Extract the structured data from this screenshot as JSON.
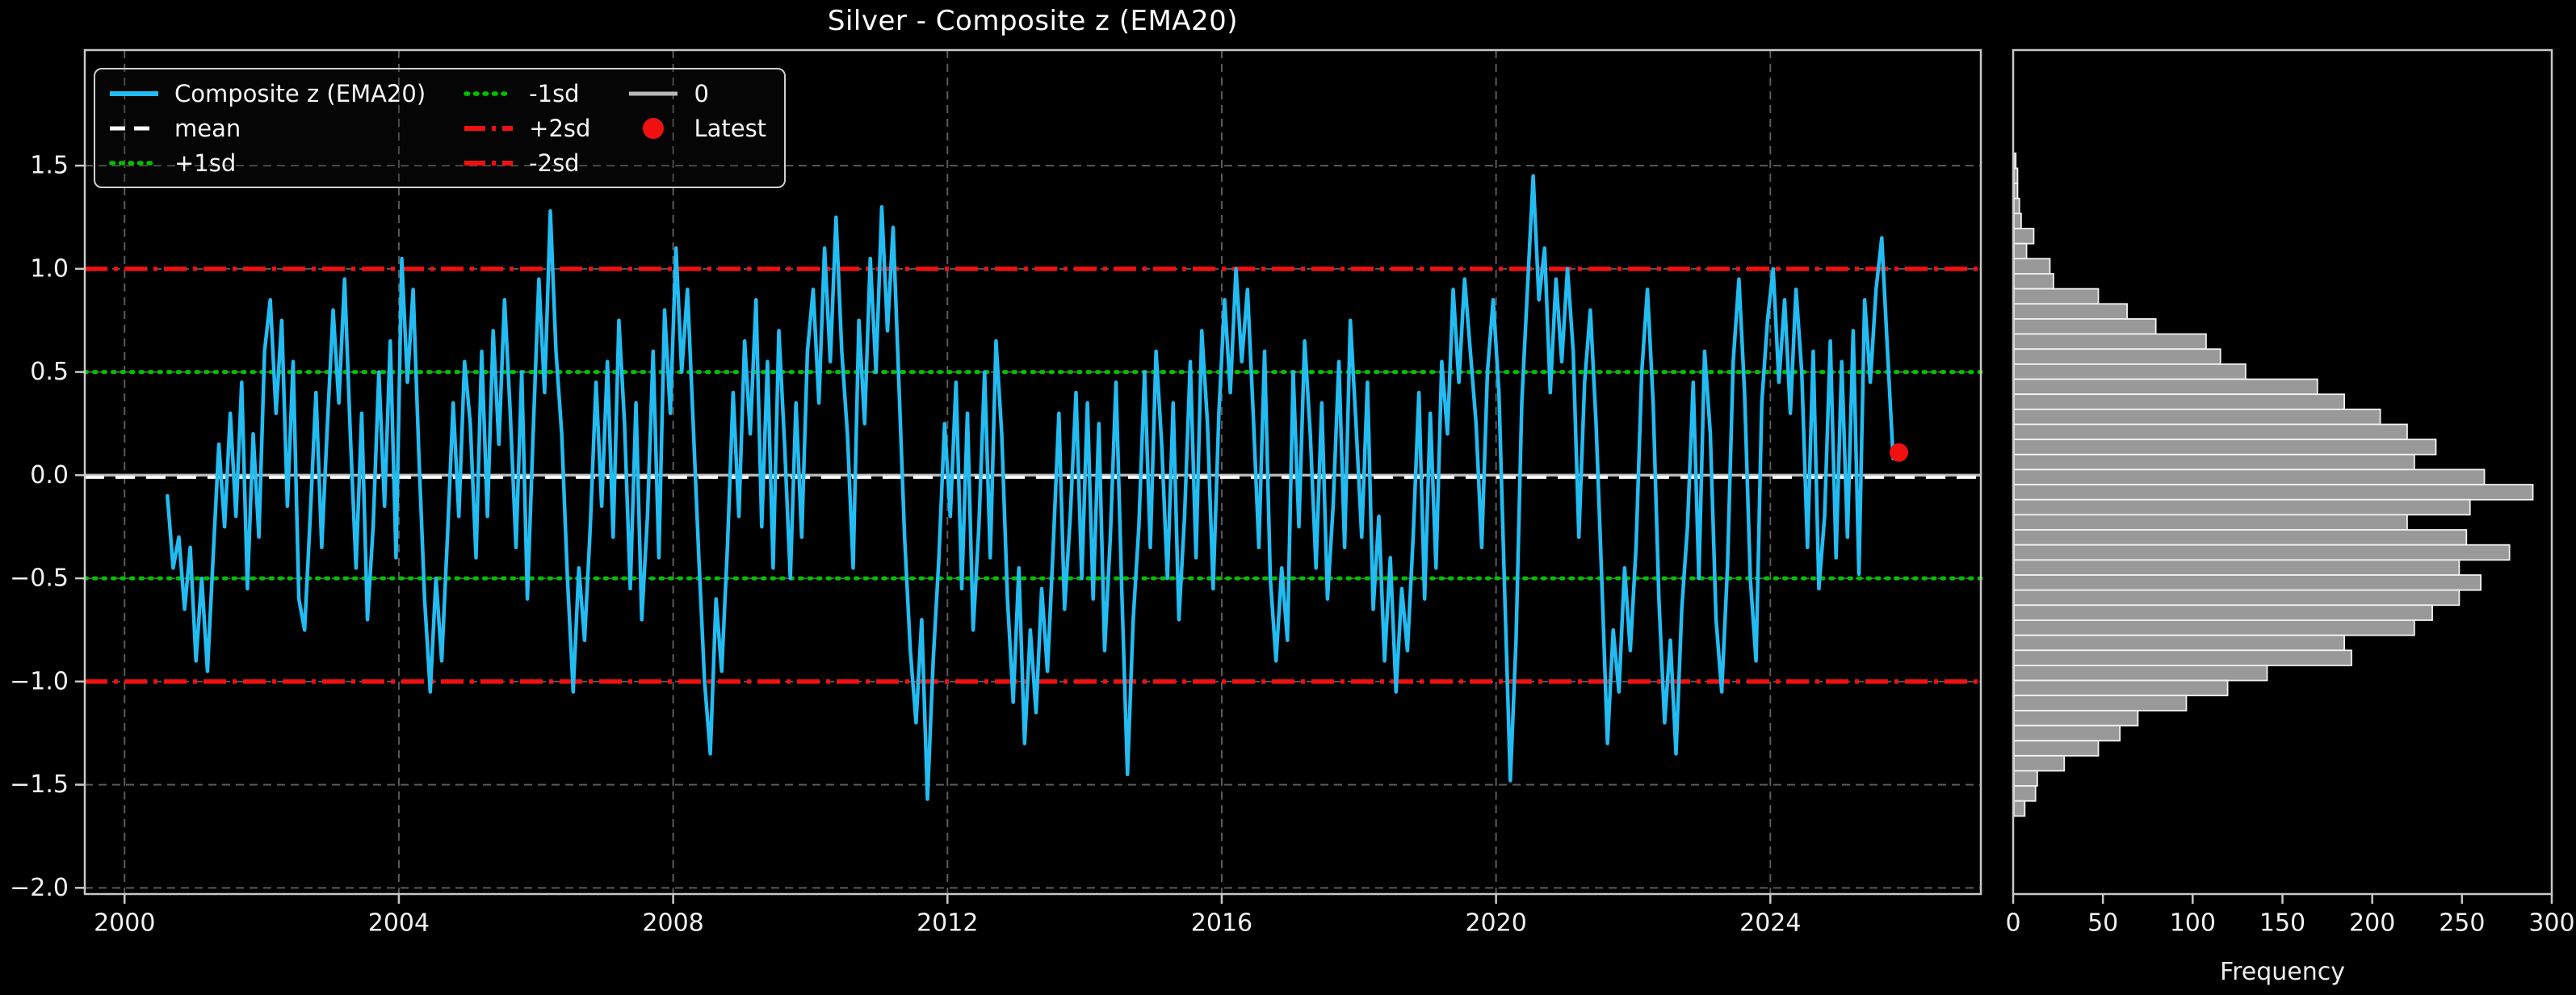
{
  "title": "Silver - Composite z (EMA20)",
  "legend": {
    "items": [
      {
        "label": "Composite z (EMA20)",
        "style": "solid-blue-line"
      },
      {
        "label": "mean",
        "style": "dashed-white-line"
      },
      {
        "label": "+1sd",
        "style": "dotted-green-line"
      },
      {
        "label": "-1sd",
        "style": "dotted-green-line"
      },
      {
        "label": "+2sd",
        "style": "dashdot-red-line"
      },
      {
        "label": "-2sd",
        "style": "dashdot-red-line"
      },
      {
        "label": "0",
        "style": "solid-gray-line"
      },
      {
        "label": "Latest",
        "style": "red-dot-marker"
      }
    ]
  },
  "colors": {
    "background": "#000000",
    "series": "#22bcf2",
    "mean_line": "#ffffff",
    "sd1_line": "#00c000",
    "sd2_line": "#f01010",
    "zero_line": "#b8b8b8",
    "latest_marker": "#f01010",
    "hist_bar_fill": "#999999",
    "hist_bar_edge": "#f2f2f2",
    "grid": "#5a5a5a",
    "spine": "#c8c8c8",
    "text": "#f2f2f2"
  },
  "chart_data": [
    {
      "type": "line",
      "name": "composite-z-timeseries",
      "title": "Silver - Composite z (EMA20)",
      "xlabel": "",
      "ylabel": "",
      "xlim": [
        1999.42,
        2027.07
      ],
      "ylim": [
        -2.03,
        2.06
      ],
      "xticks": [
        2000,
        2004,
        2008,
        2012,
        2016,
        2020,
        2024
      ],
      "yticks": [
        -2.0,
        -1.5,
        -1.0,
        -0.5,
        0.0,
        0.5,
        1.0,
        1.5
      ],
      "grid": true,
      "legend_position": "upper left",
      "ref_lines": {
        "mean": -0.01,
        "plus1sd": 0.5,
        "minus1sd": -0.5,
        "plus2sd": 1.0,
        "minus2sd": -1.0,
        "zero": 0.0
      },
      "latest": {
        "x": 2025.875,
        "y": 0.11
      },
      "x_start": 2000.625,
      "x_step": 0.083333,
      "values": [
        -0.1,
        -0.45,
        -0.3,
        -0.65,
        -0.35,
        -0.9,
        -0.5,
        -0.95,
        -0.4,
        0.15,
        -0.25,
        0.3,
        -0.2,
        0.45,
        -0.55,
        0.2,
        -0.3,
        0.6,
        0.85,
        0.3,
        0.75,
        -0.15,
        0.55,
        -0.6,
        -0.75,
        -0.2,
        0.4,
        -0.35,
        0.25,
        0.8,
        0.35,
        0.95,
        0.2,
        -0.45,
        0.3,
        -0.7,
        -0.25,
        0.5,
        -0.15,
        0.65,
        -0.4,
        1.05,
        0.45,
        0.9,
        0.1,
        -0.6,
        -1.05,
        -0.5,
        -0.9,
        -0.3,
        0.35,
        -0.2,
        0.55,
        0.25,
        -0.4,
        0.6,
        -0.2,
        0.7,
        0.15,
        0.85,
        0.3,
        -0.35,
        0.5,
        -0.6,
        0.2,
        0.95,
        0.4,
        1.28,
        0.6,
        0.2,
        -0.5,
        -1.05,
        -0.45,
        -0.8,
        -0.25,
        0.45,
        -0.15,
        0.55,
        -0.3,
        0.75,
        0.25,
        -0.55,
        0.35,
        -0.7,
        -0.2,
        0.6,
        -0.4,
        0.8,
        0.3,
        1.1,
        0.5,
        0.9,
        0.25,
        -0.4,
        -1.0,
        -1.35,
        -0.6,
        -0.95,
        -0.35,
        0.4,
        -0.2,
        0.65,
        0.2,
        0.85,
        -0.25,
        0.55,
        -0.45,
        0.7,
        0.15,
        -0.5,
        0.35,
        -0.3,
        0.6,
        0.9,
        0.35,
        1.1,
        0.55,
        1.25,
        0.6,
        0.2,
        -0.45,
        0.75,
        0.25,
        1.05,
        0.5,
        1.3,
        0.7,
        1.2,
        0.45,
        -0.3,
        -0.85,
        -1.2,
        -0.7,
        -1.57,
        -0.9,
        -0.4,
        0.25,
        -0.2,
        0.45,
        -0.55,
        0.3,
        -0.75,
        -0.25,
        0.5,
        -0.4,
        0.65,
        0.2,
        -0.6,
        -1.1,
        -0.45,
        -1.3,
        -0.75,
        -1.15,
        -0.55,
        -0.95,
        -0.35,
        0.3,
        -0.65,
        -0.2,
        0.4,
        -0.5,
        0.35,
        -0.6,
        0.25,
        -0.85,
        -0.3,
        0.45,
        -0.55,
        -1.45,
        -0.7,
        -0.25,
        0.5,
        -0.35,
        0.6,
        0.15,
        -0.5,
        0.35,
        -0.7,
        -0.2,
        0.55,
        -0.4,
        0.7,
        0.25,
        -0.55,
        0.3,
        0.85,
        0.4,
        1.0,
        0.55,
        0.9,
        0.3,
        -0.35,
        0.6,
        -0.5,
        -0.9,
        -0.45,
        -0.8,
        0.5,
        -0.25,
        0.65,
        0.2,
        -0.45,
        0.35,
        -0.6,
        -0.15,
        0.55,
        -0.35,
        0.75,
        0.25,
        -0.3,
        0.45,
        -0.65,
        -0.2,
        -0.9,
        -0.4,
        -1.05,
        -0.55,
        -0.85,
        -0.3,
        0.4,
        -0.6,
        0.3,
        -0.45,
        0.55,
        0.2,
        0.9,
        0.45,
        0.95,
        0.6,
        0.25,
        -0.35,
        0.5,
        0.85,
        0.4,
        -0.55,
        -1.48,
        -0.8,
        0.35,
        0.9,
        1.45,
        0.85,
        1.1,
        0.4,
        0.95,
        0.55,
        1.0,
        0.6,
        -0.3,
        0.45,
        0.8,
        0.25,
        -0.5,
        -1.3,
        -0.75,
        -1.05,
        -0.45,
        -0.85,
        -0.35,
        0.5,
        0.9,
        0.35,
        -0.6,
        -1.2,
        -0.8,
        -1.35,
        -0.65,
        -0.25,
        0.45,
        -0.5,
        0.6,
        0.2,
        -0.7,
        -1.05,
        -0.45,
        0.55,
        0.95,
        0.4,
        -0.5,
        -0.9,
        0.35,
        0.75,
        1.0,
        0.45,
        0.85,
        0.3,
        0.9,
        0.5,
        -0.35,
        0.6,
        -0.55,
        -0.2,
        0.65,
        -0.4,
        0.55,
        -0.3,
        0.7,
        -0.48,
        0.85,
        0.45,
        0.9,
        1.15,
        0.6,
        0.08,
        0.11
      ]
    },
    {
      "type": "bar",
      "name": "composite-z-distribution",
      "orientation": "horizontal",
      "xlabel": "Frequency",
      "ylabel": "",
      "xlim": [
        0,
        300
      ],
      "xticks": [
        0,
        50,
        100,
        150,
        200,
        250,
        300
      ],
      "grid": false,
      "bin_top": 1.56,
      "bin_size": 0.073,
      "frequencies": [
        1,
        2,
        2,
        3,
        4,
        11,
        7,
        20,
        22,
        47,
        63,
        79,
        107,
        115,
        129,
        169,
        184,
        204,
        219,
        235,
        223,
        262,
        289,
        254,
        219,
        252,
        276,
        248,
        260,
        248,
        233,
        223,
        184,
        188,
        141,
        119,
        96,
        69,
        59,
        47,
        28,
        13,
        12,
        6
      ]
    }
  ]
}
